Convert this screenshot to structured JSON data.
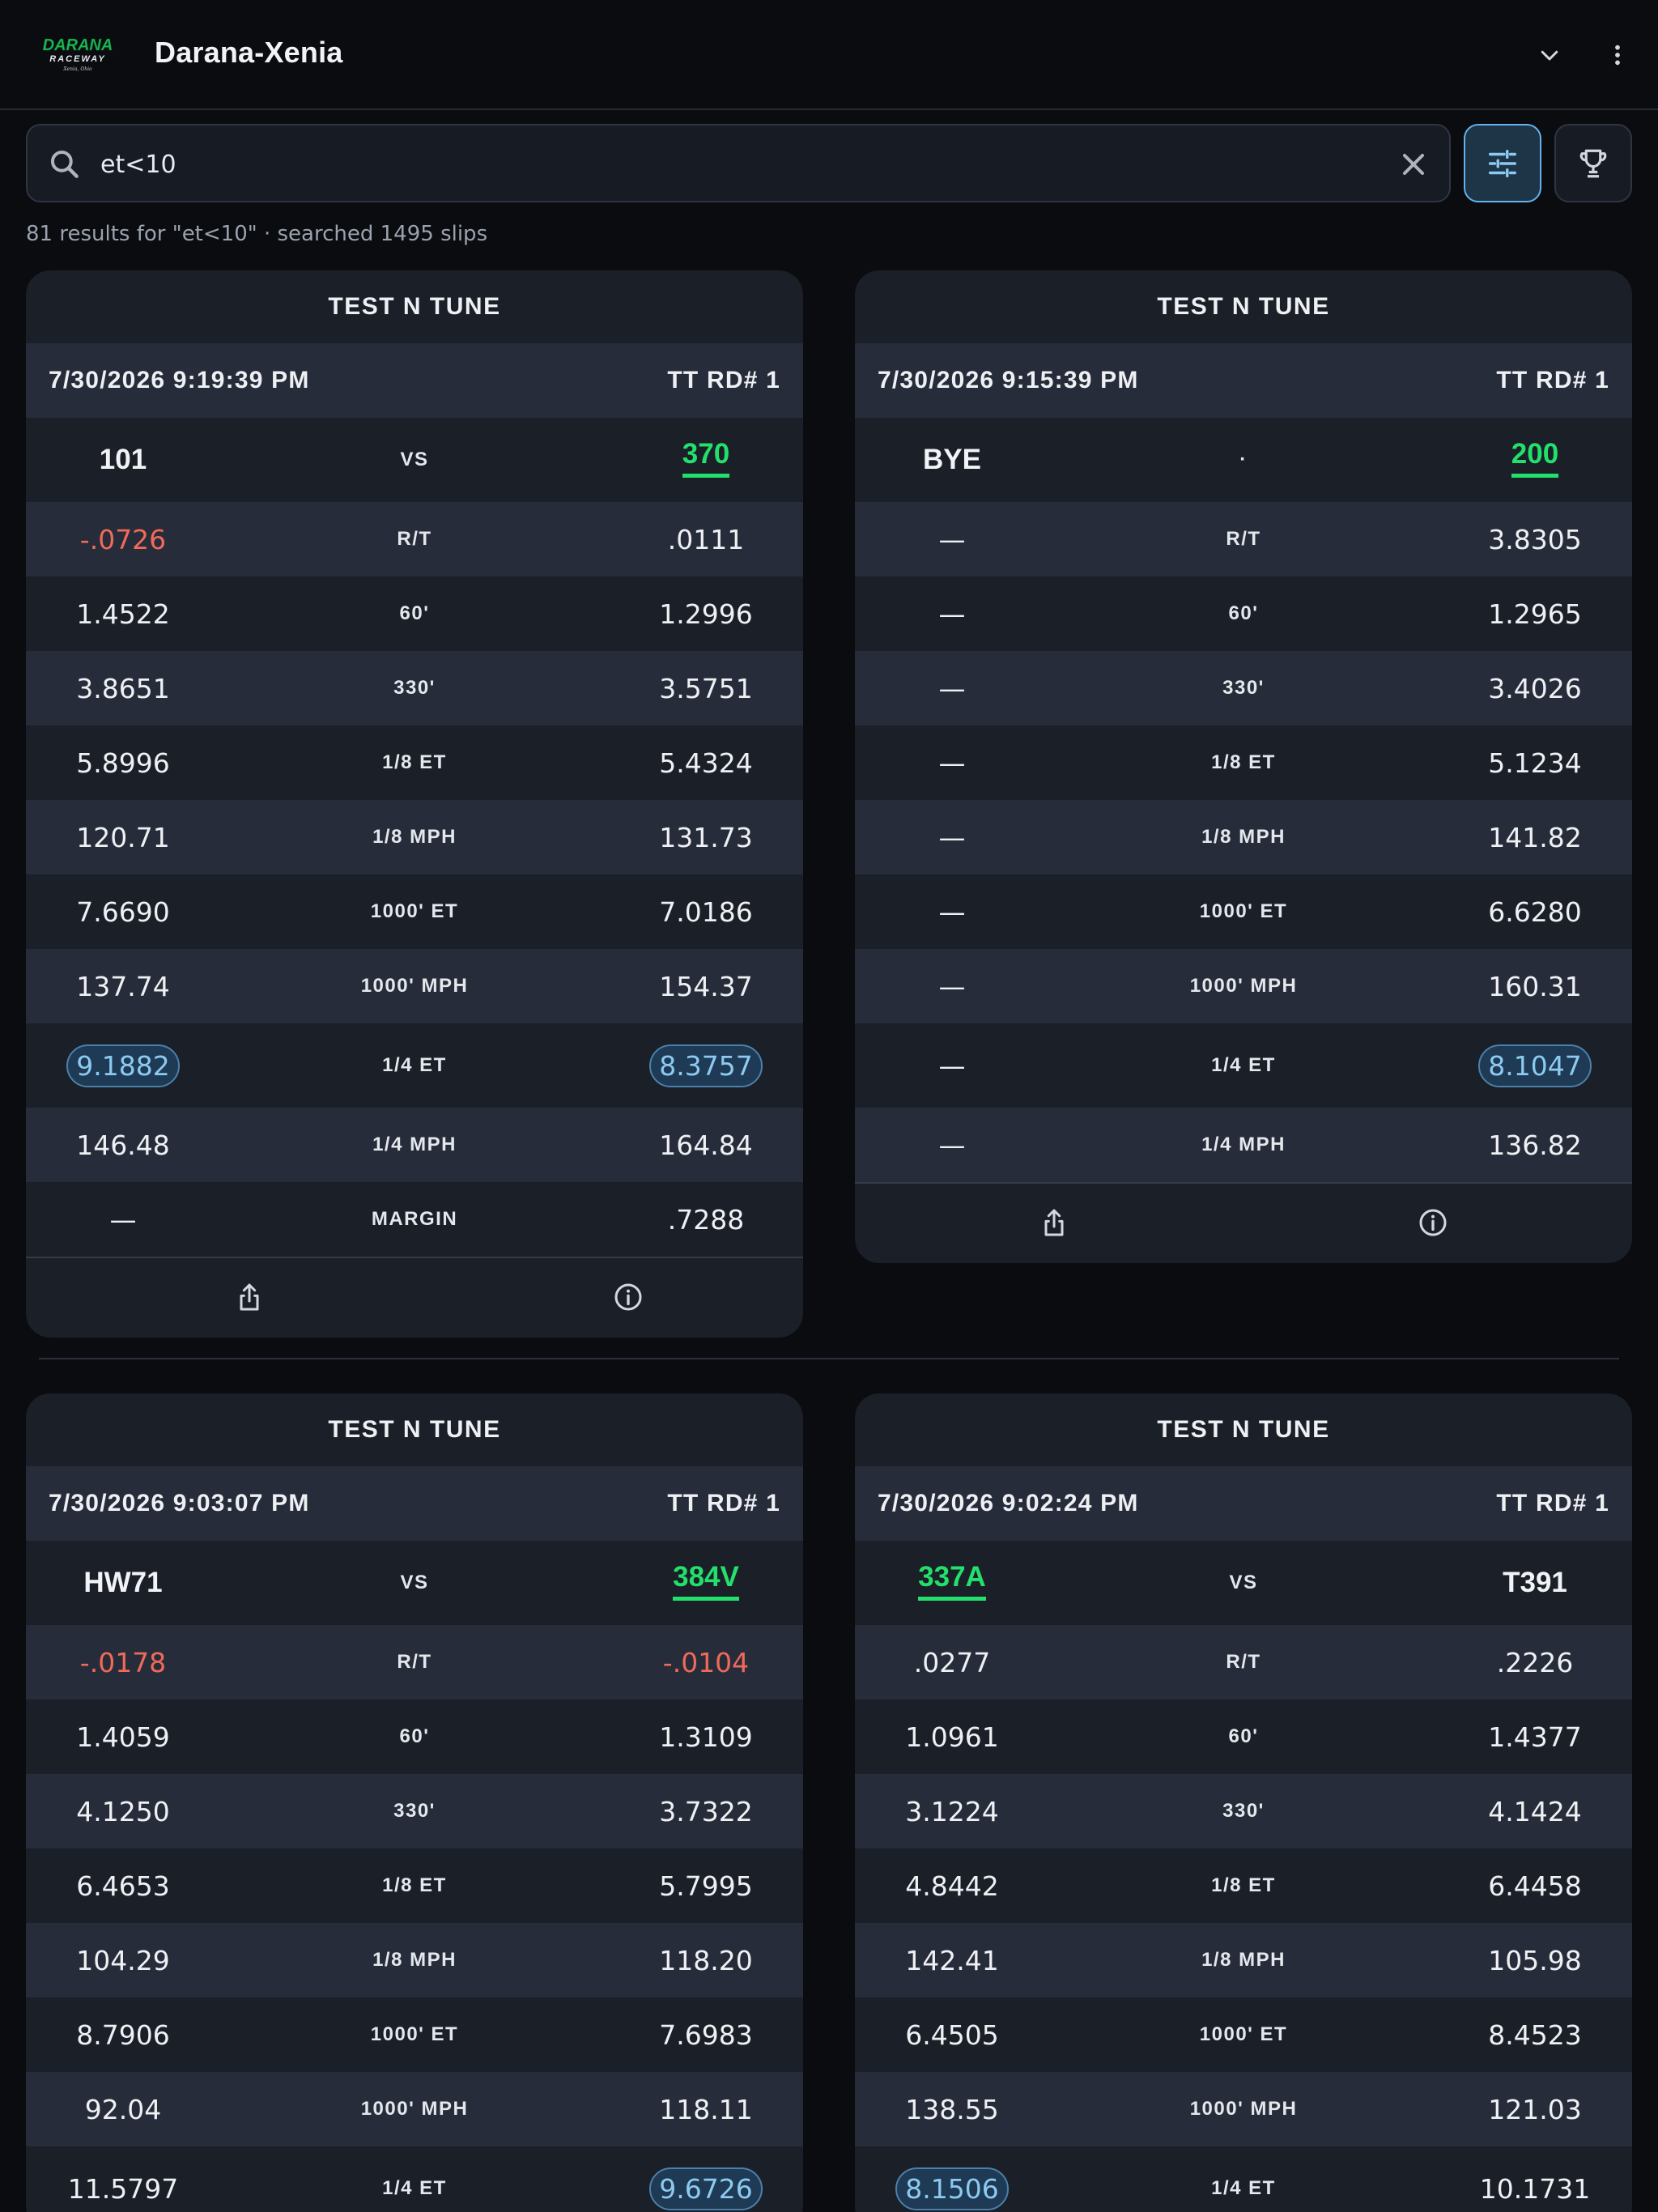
{
  "header": {
    "title": "Darana-Xenia",
    "logo": {
      "text_top": "DARANA",
      "text_bottom": "RACEWAY",
      "text_sub": "Xenia, Ohio"
    }
  },
  "search": {
    "value": "et<10",
    "placeholder": "",
    "results_text": "81 results for \"et<10\" · searched 1495 slips"
  },
  "row_labels": [
    "R/T",
    "60'",
    "330'",
    "1/8 ET",
    "1/8 MPH",
    "1000' ET",
    "1000' MPH",
    "1/4 ET",
    "1/4 MPH",
    "MARGIN"
  ],
  "colors": {
    "winner": "#22e06b",
    "negative": "#f06a5a",
    "highlight": "#8ccaf0",
    "background": "#0a0c10",
    "card": "#1b1f28"
  },
  "cards": [
    {
      "title": "TEST N TUNE",
      "datetime": "7/30/2026 9:19:39 PM",
      "round": "TT RD# 1",
      "left": {
        "name": "101",
        "winner": false
      },
      "vs": "VS",
      "right": {
        "name": "370",
        "winner": true
      },
      "rows": [
        {
          "label": "R/T",
          "left": "-.0726",
          "right": ".0111",
          "left_neg": true
        },
        {
          "label": "60'",
          "left": "1.4522",
          "right": "1.2996"
        },
        {
          "label": "330'",
          "left": "3.8651",
          "right": "3.5751"
        },
        {
          "label": "1/8 ET",
          "left": "5.8996",
          "right": "5.4324"
        },
        {
          "label": "1/8 MPH",
          "left": "120.71",
          "right": "131.73"
        },
        {
          "label": "1000' ET",
          "left": "7.6690",
          "right": "7.0186"
        },
        {
          "label": "1000' MPH",
          "left": "137.74",
          "right": "154.37"
        },
        {
          "label": "1/4 ET",
          "left": "9.1882",
          "right": "8.3757",
          "left_pill": true,
          "right_pill": true
        },
        {
          "label": "1/4 MPH",
          "left": "146.48",
          "right": "164.84"
        },
        {
          "label": "MARGIN",
          "left": "—",
          "right": ".7288"
        }
      ]
    },
    {
      "title": "TEST N TUNE",
      "datetime": "7/30/2026 9:15:39 PM",
      "round": "TT RD# 1",
      "left": {
        "name": "BYE",
        "winner": false
      },
      "vs": "·",
      "right": {
        "name": "200",
        "winner": true
      },
      "rows": [
        {
          "label": "R/T",
          "left": "—",
          "right": "3.8305"
        },
        {
          "label": "60'",
          "left": "—",
          "right": "1.2965"
        },
        {
          "label": "330'",
          "left": "—",
          "right": "3.4026"
        },
        {
          "label": "1/8 ET",
          "left": "—",
          "right": "5.1234"
        },
        {
          "label": "1/8 MPH",
          "left": "—",
          "right": "141.82"
        },
        {
          "label": "1000' ET",
          "left": "—",
          "right": "6.6280"
        },
        {
          "label": "1000' MPH",
          "left": "—",
          "right": "160.31"
        },
        {
          "label": "1/4 ET",
          "left": "—",
          "right": "8.1047",
          "right_pill": true
        },
        {
          "label": "1/4 MPH",
          "left": "—",
          "right": "136.82"
        }
      ]
    },
    {
      "title": "TEST N TUNE",
      "datetime": "7/30/2026 9:03:07 PM",
      "round": "TT RD# 1",
      "left": {
        "name": "HW71",
        "winner": false
      },
      "vs": "VS",
      "right": {
        "name": "384V",
        "winner": true
      },
      "rows": [
        {
          "label": "R/T",
          "left": "-.0178",
          "right": "-.0104",
          "left_neg": true,
          "right_neg": true
        },
        {
          "label": "60'",
          "left": "1.4059",
          "right": "1.3109"
        },
        {
          "label": "330'",
          "left": "4.1250",
          "right": "3.7322"
        },
        {
          "label": "1/8 ET",
          "left": "6.4653",
          "right": "5.7995"
        },
        {
          "label": "1/8 MPH",
          "left": "104.29",
          "right": "118.20"
        },
        {
          "label": "1000' ET",
          "left": "8.7906",
          "right": "7.6983"
        },
        {
          "label": "1000' MPH",
          "left": "92.04",
          "right": "118.11"
        },
        {
          "label": "1/4 ET",
          "left": "11.5797",
          "right": "9.6726",
          "right_pill": true
        }
      ]
    },
    {
      "title": "TEST N TUNE",
      "datetime": "7/30/2026 9:02:24 PM",
      "round": "TT RD# 1",
      "left": {
        "name": "337A",
        "winner": true
      },
      "vs": "VS",
      "right": {
        "name": "T391",
        "winner": false
      },
      "rows": [
        {
          "label": "R/T",
          "left": ".0277",
          "right": ".2226"
        },
        {
          "label": "60'",
          "left": "1.0961",
          "right": "1.4377"
        },
        {
          "label": "330'",
          "left": "3.1224",
          "right": "4.1424"
        },
        {
          "label": "1/8 ET",
          "left": "4.8442",
          "right": "6.4458"
        },
        {
          "label": "1/8 MPH",
          "left": "142.41",
          "right": "105.98"
        },
        {
          "label": "1000' ET",
          "left": "6.4505",
          "right": "8.4523"
        },
        {
          "label": "1000' MPH",
          "left": "138.55",
          "right": "121.03"
        },
        {
          "label": "1/4 ET",
          "left": "8.1506",
          "right": "10.1731",
          "left_pill": true
        }
      ]
    }
  ],
  "icons": {
    "search": "search-icon",
    "clear": "close-icon",
    "filter": "sliders-icon",
    "trophy": "trophy-icon",
    "chevron": "chevron-down-icon",
    "menu": "more-vertical-icon",
    "share": "share-icon",
    "info": "info-icon"
  }
}
